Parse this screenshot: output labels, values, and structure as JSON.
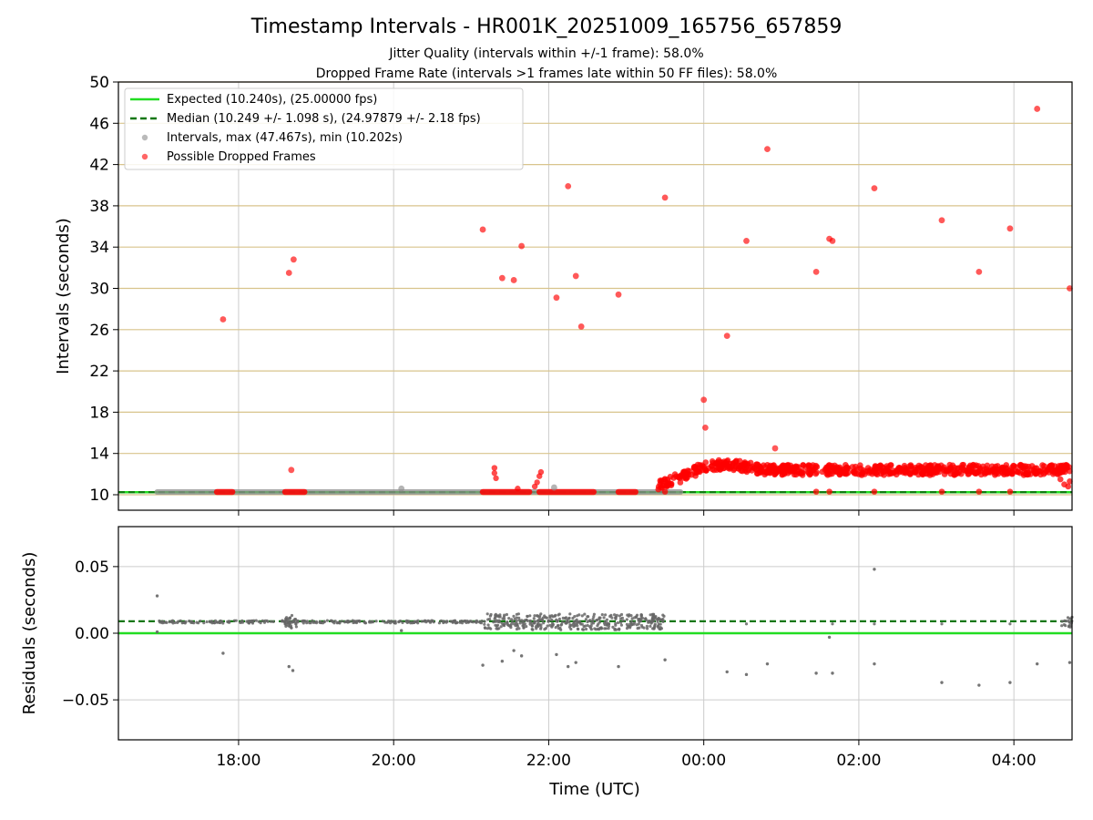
{
  "title": "Timestamp Intervals - HR001K_20251009_165756_657859",
  "subtitle1": "Jitter Quality (intervals within +/-1 frame): 58.0%",
  "subtitle2": "Dropped Frame Rate (intervals >1 frames late within 50 FF files): 58.0%",
  "colors": {
    "expected": "#22dd22",
    "median": "#117711",
    "intervals": "#8c8c8c",
    "dropped": "#ff0000",
    "hgrid": "#d8c48c",
    "vgrid": "#cccccc",
    "residuals": "#666666"
  },
  "chart_data": [
    {
      "type": "scatter",
      "ylabel": "Intervals (seconds)",
      "ylim": [
        8.5,
        50
      ],
      "yticks": [
        10,
        14,
        18,
        22,
        26,
        30,
        34,
        38,
        42,
        46,
        50
      ],
      "xlim_hours": [
        16.45,
        28.75
      ],
      "legend_position": "upper-left",
      "legend": [
        "Expected (10.240s), (25.00000 fps)",
        "Median (10.249 +/- 1.098 s), (24.97879 +/- 2.18 fps)",
        "Intervals, max (47.467s), min (10.202s)",
        "Possible Dropped Frames"
      ],
      "expected": 10.24,
      "median": 10.249,
      "series": [
        {
          "name": "Intervals, max (47.467s), min (10.202s)",
          "x": [
            20.1,
            22.07
          ],
          "y": [
            10.6,
            10.7
          ]
        },
        {
          "name": "Possible Dropped Frames",
          "x": [
            17.8,
            18.65,
            18.68,
            18.71,
            21.15,
            21.4,
            21.55,
            21.65,
            22.1,
            22.25,
            22.35,
            22.42,
            22.9,
            23.5,
            24.0,
            24.02,
            24.3,
            24.55,
            24.82,
            24.92,
            25.45,
            25.62,
            25.66,
            26.2,
            27.07,
            27.55,
            27.95,
            28.3,
            28.72
          ],
          "y": [
            27.0,
            31.5,
            12.4,
            32.8,
            35.7,
            31.0,
            30.8,
            34.1,
            29.1,
            39.9,
            31.2,
            26.3,
            29.4,
            38.8,
            19.2,
            16.5,
            25.4,
            34.6,
            43.5,
            14.5,
            31.6,
            34.8,
            34.6,
            39.7,
            36.6,
            31.6,
            35.8,
            47.4,
            30.0
          ]
        }
      ]
    },
    {
      "type": "scatter",
      "xlabel": "Time (UTC)",
      "ylabel": "Residuals (seconds)",
      "ylim": [
        -0.08,
        0.08
      ],
      "yticks": [
        0.05,
        0.0,
        -0.05
      ],
      "ytick_labels": [
        "0.05",
        "0.00",
        "−0.05"
      ],
      "xlim_hours": [
        16.45,
        28.75
      ],
      "xticks": [
        "18:00",
        "20:00",
        "22:00",
        "00:00",
        "02:00",
        "04:00"
      ],
      "xticks_hours": [
        18,
        20,
        22,
        24,
        26,
        28
      ],
      "expected": 0.0,
      "median": 0.009,
      "series": [
        {
          "name": "Residuals",
          "x": [
            16.95,
            16.95,
            17.8,
            18.65,
            18.7,
            20.1,
            21.15,
            21.4,
            21.55,
            21.65,
            22.1,
            22.25,
            22.35,
            22.9,
            23.5,
            24.3,
            24.55,
            24.82,
            25.45,
            25.62,
            25.66,
            26.2,
            27.07,
            27.55,
            27.95,
            28.3,
            28.72
          ],
          "y": [
            0.028,
            0.001,
            -0.015,
            -0.025,
            -0.028,
            0.002,
            -0.024,
            -0.021,
            -0.013,
            -0.017,
            -0.016,
            -0.025,
            -0.022,
            -0.025,
            -0.02,
            -0.029,
            -0.031,
            -0.023,
            -0.03,
            -0.003,
            -0.03,
            -0.023,
            -0.037,
            -0.039,
            -0.037,
            -0.023,
            -0.022
          ]
        }
      ]
    }
  ]
}
